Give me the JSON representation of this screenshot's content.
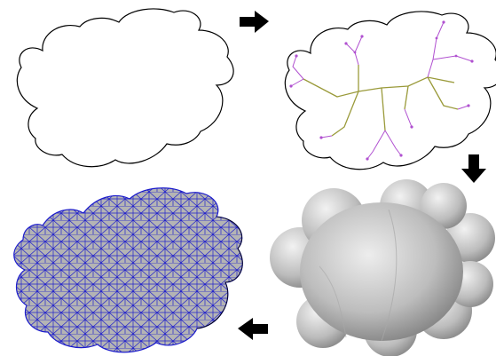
{
  "figure": {
    "panels": [
      {
        "id": "outline"
      },
      {
        "id": "skeleton"
      },
      {
        "id": "inflated-shape"
      },
      {
        "id": "triangle-mesh"
      }
    ],
    "arrows": [
      {
        "direction": "right"
      },
      {
        "direction": "down"
      },
      {
        "direction": "left"
      }
    ],
    "colors": {
      "outline": "#000000",
      "skeleton_main": "#9a9a3a",
      "skeleton_branch": "#b050d0",
      "mesh_edges": "#2222cc",
      "mesh_fill": "#b4b4b4",
      "shaded_light": "#e8e8e8",
      "shaded_dark": "#6e6e6e",
      "arrow": "#000000"
    }
  }
}
